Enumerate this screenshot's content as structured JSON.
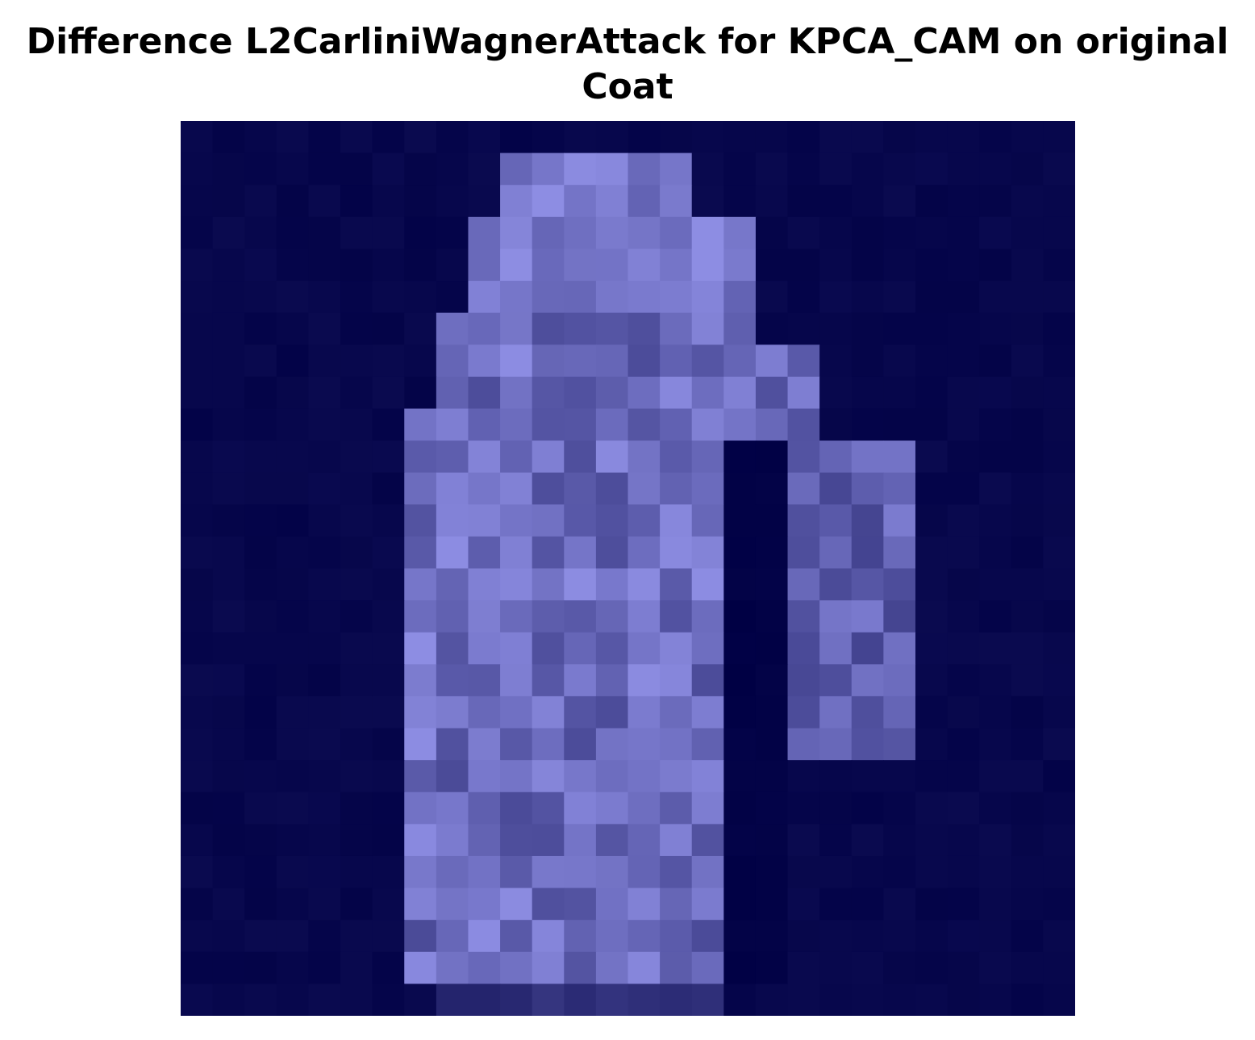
{
  "chart_data": {
    "type": "heatmap",
    "title": "Difference L2CarliniWagnerAttack for KPCA_CAM on original",
    "subtitle": "Coat",
    "axes_visible": false,
    "grid": false,
    "rows": 28,
    "cols": 28,
    "colors": {
      "low": "#000044",
      "high": "#a6a6ff"
    },
    "coat_region": {
      "shoulder_row": 1,
      "body_left": 7,
      "body_right": 16,
      "sleeve_left": 19,
      "sleeve_right": 22,
      "sleeve_bottom_row": 19,
      "hem_row": 26,
      "bottom_row": 27
    }
  }
}
